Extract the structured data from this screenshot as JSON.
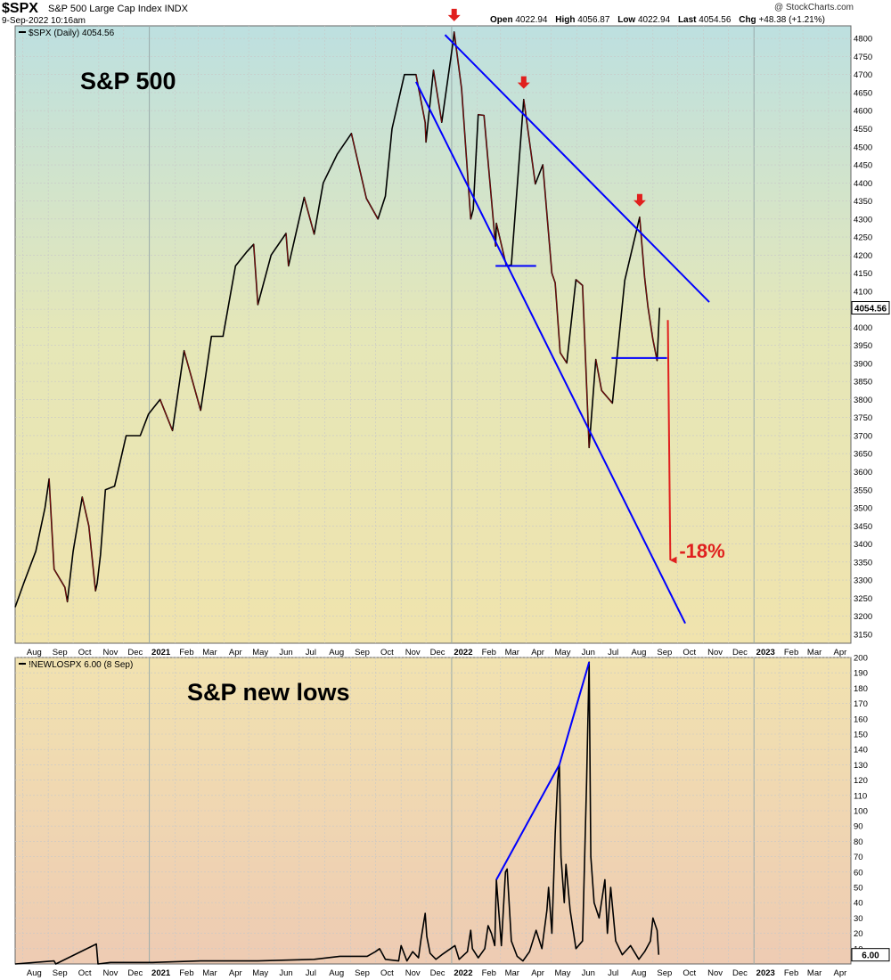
{
  "header": {
    "symbol": "$SPX",
    "name": "S&P 500 Large Cap Index INDX",
    "datetime": "9-Sep-2022 10:16am",
    "brand": "@ StockCharts.com",
    "quote": {
      "open_label": "Open",
      "open": "4022.94",
      "high_label": "High",
      "high": "4056.87",
      "low_label": "Low",
      "low": "4022.94",
      "last_label": "Last",
      "last": "4054.56",
      "chg_label": "Chg",
      "chg": "+48.38 (+1.21%)"
    }
  },
  "chart_data": [
    {
      "type": "line",
      "panel": "price",
      "legend": "$SPX (Daily) 4054.56",
      "annotation": "S&P 500",
      "current_value_label": "4054.56",
      "ylim": [
        3125,
        4835
      ],
      "y_ticks": [
        3150,
        3200,
        3250,
        3300,
        3350,
        3400,
        3450,
        3500,
        3550,
        3600,
        3650,
        3700,
        3750,
        3800,
        3850,
        3900,
        3950,
        4000,
        4050,
        4100,
        4150,
        4200,
        4250,
        4300,
        4350,
        4400,
        4450,
        4500,
        4550,
        4600,
        4650,
        4700,
        4750,
        4800
      ],
      "x_ticks": [
        "Aug",
        "Sep",
        "Oct",
        "Nov",
        "Dec",
        "2021",
        "Feb",
        "Mar",
        "Apr",
        "May",
        "Jun",
        "Jul",
        "Aug",
        "Sep",
        "Oct",
        "Nov",
        "Dec",
        "2022",
        "Feb",
        "Mar",
        "Apr",
        "May",
        "Jun",
        "Jul",
        "Aug",
        "Sep",
        "Oct",
        "Nov",
        "Dec",
        "2023",
        "Feb",
        "Mar",
        "Apr"
      ],
      "series": [
        {
          "values": [
            [
              "2020-07-23",
              3225
            ],
            [
              "2020-08-03",
              3295
            ],
            [
              "2020-08-17",
              3380
            ],
            [
              "2020-08-28",
              3500
            ],
            [
              "2020-09-02",
              3580
            ],
            [
              "2020-09-08",
              3330
            ],
            [
              "2020-09-21",
              3280
            ],
            [
              "2020-09-24",
              3240
            ],
            [
              "2020-10-01",
              3380
            ],
            [
              "2020-10-12",
              3530
            ],
            [
              "2020-10-20",
              3450
            ],
            [
              "2020-10-28",
              3270
            ],
            [
              "2020-10-30",
              3290
            ],
            [
              "2020-11-03",
              3370
            ],
            [
              "2020-11-09",
              3550
            ],
            [
              "2020-11-20",
              3560
            ],
            [
              "2020-12-04",
              3700
            ],
            [
              "2020-12-21",
              3700
            ],
            [
              "2020-12-31",
              3760
            ],
            [
              "2021-01-14",
              3800
            ],
            [
              "2021-01-29",
              3714
            ],
            [
              "2021-02-12",
              3935
            ],
            [
              "2021-03-04",
              3770
            ],
            [
              "2021-03-17",
              3975
            ],
            [
              "2021-03-31",
              3975
            ],
            [
              "2021-04-15",
              4170
            ],
            [
              "2021-04-29",
              4210
            ],
            [
              "2021-05-07",
              4230
            ],
            [
              "2021-05-12",
              4063
            ],
            [
              "2021-05-28",
              4200
            ],
            [
              "2021-06-15",
              4260
            ],
            [
              "2021-06-18",
              4170
            ],
            [
              "2021-07-07",
              4360
            ],
            [
              "2021-07-19",
              4258
            ],
            [
              "2021-07-30",
              4400
            ],
            [
              "2021-08-16",
              4480
            ],
            [
              "2021-09-02",
              4537
            ],
            [
              "2021-09-20",
              4357
            ],
            [
              "2021-10-04",
              4300
            ],
            [
              "2021-10-13",
              4363
            ],
            [
              "2021-10-21",
              4550
            ],
            [
              "2021-11-05",
              4700
            ],
            [
              "2021-11-19",
              4700
            ],
            [
              "2021-11-30",
              4567
            ],
            [
              "2021-12-01",
              4513
            ],
            [
              "2021-12-10",
              4712
            ],
            [
              "2021-12-20",
              4568
            ],
            [
              "2022-01-03",
              4796
            ],
            [
              "2022-01-04",
              4818
            ],
            [
              "2022-01-13",
              4660
            ],
            [
              "2022-01-24",
              4300
            ],
            [
              "2022-01-27",
              4326
            ],
            [
              "2022-02-02",
              4589
            ],
            [
              "2022-02-09",
              4587
            ],
            [
              "2022-02-23",
              4225
            ],
            [
              "2022-02-24",
              4288
            ],
            [
              "2022-03-08",
              4170
            ],
            [
              "2022-03-14",
              4173
            ],
            [
              "2022-03-29",
              4631
            ],
            [
              "2022-04-12",
              4397
            ],
            [
              "2022-04-21",
              4450
            ],
            [
              "2022-05-02",
              4150
            ],
            [
              "2022-05-06",
              4123
            ],
            [
              "2022-05-12",
              3930
            ],
            [
              "2022-05-20",
              3901
            ],
            [
              "2022-05-31",
              4132
            ],
            [
              "2022-06-08",
              4116
            ],
            [
              "2022-06-16",
              3667
            ],
            [
              "2022-06-24",
              3911
            ],
            [
              "2022-07-01",
              3825
            ],
            [
              "2022-07-14",
              3790
            ],
            [
              "2022-07-29",
              4130
            ],
            [
              "2022-08-16",
              4305
            ],
            [
              "2022-08-22",
              4138
            ],
            [
              "2022-08-26",
              4057
            ],
            [
              "2022-09-01",
              3966
            ],
            [
              "2022-09-06",
              3908
            ],
            [
              "2022-09-09",
              4054
            ]
          ]
        }
      ],
      "trendlines": [
        {
          "from": [
            "2021-11-19",
            4680
          ],
          "to": [
            "2022-10-10",
            3180
          ],
          "color": "#0000ff"
        },
        {
          "from": [
            "2021-12-24",
            4810
          ],
          "to": [
            "2022-11-08",
            4070
          ],
          "color": "#0000ff"
        },
        {
          "from": [
            "2022-02-23",
            4170
          ],
          "to": [
            "2022-04-13",
            4170
          ],
          "color": "#0000ff"
        },
        {
          "from": [
            "2022-07-13",
            3915
          ],
          "to": [
            "2022-09-18",
            3915
          ],
          "color": "#0000ff"
        }
      ],
      "markers": [
        {
          "type": "down-arrow",
          "x": "2022-01-04",
          "y": 4818,
          "color": "#e0201e"
        },
        {
          "type": "down-arrow",
          "x": "2022-03-29",
          "y": 4631,
          "color": "#e0201e"
        },
        {
          "type": "down-arrow",
          "x": "2022-08-16",
          "y": 4305,
          "color": "#e0201e"
        }
      ],
      "projection": {
        "from": [
          "2022-09-19",
          4020
        ],
        "to": [
          "2022-09-22",
          3355
        ],
        "label": "-18%",
        "color": "#e0201e"
      }
    },
    {
      "type": "line",
      "panel": "indicator",
      "legend": "!NEWLOSPX 6.00 (8 Sep)",
      "annotation": "S&P new lows",
      "current_value_label": "6.00",
      "ylim": [
        0,
        200
      ],
      "y_ticks": [
        10,
        20,
        30,
        40,
        50,
        60,
        70,
        80,
        90,
        100,
        110,
        120,
        130,
        140,
        150,
        160,
        170,
        180,
        190,
        200
      ],
      "x_ticks": [
        "Aug",
        "Sep",
        "Oct",
        "Nov",
        "Dec",
        "2021",
        "Feb",
        "Mar",
        "Apr",
        "May",
        "Jun",
        "Jul",
        "Aug",
        "Sep",
        "Oct",
        "Nov",
        "Dec",
        "2022",
        "Feb",
        "Mar",
        "Apr",
        "May",
        "Jun",
        "Jul",
        "Aug",
        "Sep",
        "Oct",
        "Nov",
        "Dec",
        "2023",
        "Feb",
        "Mar",
        "Apr"
      ],
      "series": [
        {
          "values": [
            [
              "2020-07-23",
              0
            ],
            [
              "2020-09-08",
              2
            ],
            [
              "2020-09-10",
              0
            ],
            [
              "2020-10-29",
              13
            ],
            [
              "2020-10-31",
              0
            ],
            [
              "2020-11-15",
              1
            ],
            [
              "2021-01-05",
              1
            ],
            [
              "2021-03-04",
              2
            ],
            [
              "2021-05-12",
              2
            ],
            [
              "2021-07-19",
              3
            ],
            [
              "2021-08-19",
              5
            ],
            [
              "2021-09-21",
              5
            ],
            [
              "2021-10-01",
              8
            ],
            [
              "2021-10-06",
              10
            ],
            [
              "2021-10-13",
              3
            ],
            [
              "2021-10-29",
              2
            ],
            [
              "2021-11-01",
              12
            ],
            [
              "2021-11-08",
              2
            ],
            [
              "2021-11-15",
              8
            ],
            [
              "2021-11-22",
              4
            ],
            [
              "2021-11-25",
              16
            ],
            [
              "2021-11-30",
              33
            ],
            [
              "2021-12-02",
              18
            ],
            [
              "2021-12-06",
              7
            ],
            [
              "2021-12-13",
              3
            ],
            [
              "2021-12-20",
              6
            ],
            [
              "2022-01-05",
              12
            ],
            [
              "2022-01-10",
              3
            ],
            [
              "2022-01-20",
              8
            ],
            [
              "2022-01-24",
              22
            ],
            [
              "2022-01-26",
              10
            ],
            [
              "2022-02-02",
              4
            ],
            [
              "2022-02-10",
              10
            ],
            [
              "2022-02-14",
              25
            ],
            [
              "2022-02-18",
              20
            ],
            [
              "2022-02-22",
              12
            ],
            [
              "2022-02-24",
              55
            ],
            [
              "2022-03-02",
              12
            ],
            [
              "2022-03-07",
              60
            ],
            [
              "2022-03-09",
              62
            ],
            [
              "2022-03-14",
              15
            ],
            [
              "2022-03-21",
              5
            ],
            [
              "2022-03-28",
              2
            ],
            [
              "2022-04-05",
              8
            ],
            [
              "2022-04-13",
              22
            ],
            [
              "2022-04-20",
              10
            ],
            [
              "2022-04-26",
              35
            ],
            [
              "2022-04-28",
              50
            ],
            [
              "2022-05-02",
              20
            ],
            [
              "2022-05-06",
              85
            ],
            [
              "2022-05-09",
              120
            ],
            [
              "2022-05-11",
              130
            ],
            [
              "2022-05-13",
              70
            ],
            [
              "2022-05-17",
              40
            ],
            [
              "2022-05-19",
              65
            ],
            [
              "2022-05-24",
              35
            ],
            [
              "2022-05-31",
              10
            ],
            [
              "2022-06-08",
              15
            ],
            [
              "2022-06-13",
              120
            ],
            [
              "2022-06-16",
              197
            ],
            [
              "2022-06-18",
              70
            ],
            [
              "2022-06-22",
              40
            ],
            [
              "2022-06-28",
              30
            ],
            [
              "2022-07-05",
              55
            ],
            [
              "2022-07-08",
              20
            ],
            [
              "2022-07-12",
              50
            ],
            [
              "2022-07-18",
              15
            ],
            [
              "2022-07-26",
              6
            ],
            [
              "2022-08-05",
              12
            ],
            [
              "2022-08-15",
              3
            ],
            [
              "2022-08-22",
              8
            ],
            [
              "2022-08-29",
              15
            ],
            [
              "2022-09-01",
              30
            ],
            [
              "2022-09-06",
              22
            ],
            [
              "2022-09-08",
              6
            ]
          ]
        }
      ],
      "trendlines": [
        {
          "from": [
            "2022-02-24",
            55
          ],
          "to": [
            "2022-05-11",
            130
          ],
          "color": "#0000ff"
        },
        {
          "from": [
            "2022-05-11",
            130
          ],
          "to": [
            "2022-06-16",
            197
          ],
          "color": "#0000ff"
        }
      ]
    }
  ]
}
